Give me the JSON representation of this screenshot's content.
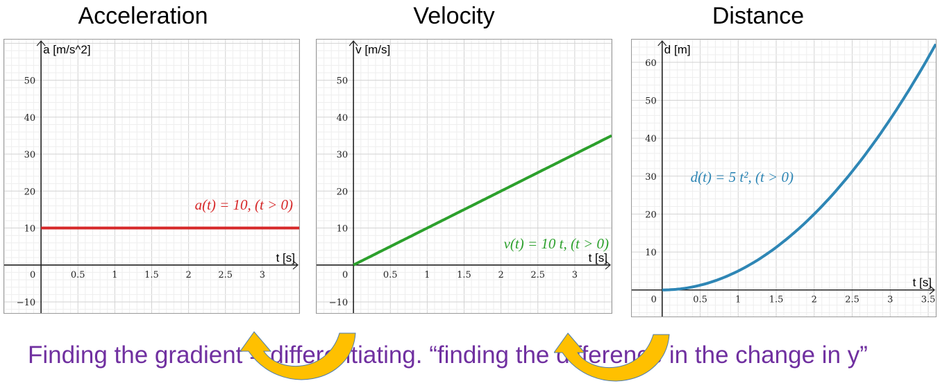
{
  "titles": [
    "Acceleration",
    "Velocity",
    "Distance"
  ],
  "bottom_text": "Finding the gradient = differentiating. “finding the difference in the change in y”",
  "colors": {
    "acceleration": "#d62728",
    "velocity": "#2ca02c",
    "distance": "#2e86b5",
    "text": "#7030A0",
    "arrow": "#FFC000"
  },
  "chart_data": [
    {
      "type": "line",
      "title": "Acceleration",
      "xlabel": "t [s]",
      "ylabel": "a [m/s^2]",
      "equation": "a(t) = 10,    (t > 0)",
      "function": "a(t)=10",
      "x": [
        0,
        0.5,
        1,
        1.5,
        2,
        2.5,
        3,
        3.5
      ],
      "y": [
        10,
        10,
        10,
        10,
        10,
        10,
        10,
        10
      ],
      "xlim": [
        -0.5,
        3.5
      ],
      "ylim": [
        -13,
        61
      ],
      "xticks": [
        "0.5",
        "1",
        "1.5",
        "2",
        "2.5",
        "3"
      ],
      "yticks": [
        "−10",
        "10",
        "20",
        "30",
        "40",
        "50"
      ],
      "origin_label": "0",
      "grid": true
    },
    {
      "type": "line",
      "title": "Velocity",
      "xlabel": "t [s]",
      "ylabel": "v [m/s]",
      "equation": "v(t) = 10 t,    (t > 0)",
      "function": "v(t)=10t",
      "x": [
        0,
        0.5,
        1,
        1.5,
        2,
        2.5,
        3,
        3.5
      ],
      "y": [
        0,
        5,
        10,
        15,
        20,
        25,
        30,
        35
      ],
      "xlim": [
        -0.5,
        3.5
      ],
      "ylim": [
        -13,
        61
      ],
      "xticks": [
        "0.5",
        "1",
        "1.5",
        "2",
        "2.5",
        "3"
      ],
      "yticks": [
        "−10",
        "10",
        "20",
        "30",
        "40",
        "50"
      ],
      "origin_label": "0",
      "grid": true
    },
    {
      "type": "line",
      "title": "Distance",
      "xlabel": "t [s]",
      "ylabel": "d [m]",
      "equation": "d(t) = 5 t²,    (t > 0)",
      "function": "d(t)=5t^2",
      "x": [
        0,
        0.5,
        1,
        1.5,
        2,
        2.5,
        3,
        3.5,
        3.6
      ],
      "y": [
        0,
        1.25,
        5,
        11.25,
        20,
        31.25,
        45,
        61.25,
        64.8
      ],
      "xlim": [
        -0.4,
        3.6
      ],
      "ylim": [
        -7,
        66
      ],
      "xticks": [
        "0.5",
        "1",
        "1.5",
        "2",
        "2.5",
        "3",
        "3.5"
      ],
      "yticks": [
        "10",
        "20",
        "30",
        "40",
        "50",
        "60"
      ],
      "origin_label": "0",
      "grid": true
    }
  ]
}
